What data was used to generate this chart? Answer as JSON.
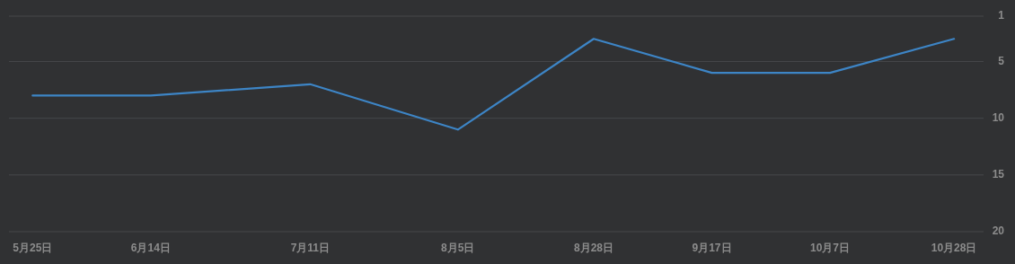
{
  "chart_data": {
    "type": "line",
    "x": [
      "--05-25",
      "--06-14",
      "--07-11",
      "--08-05",
      "--08-28",
      "--09-17",
      "--10-07",
      "--10-28"
    ],
    "values": [
      8,
      8,
      7,
      11,
      3,
      6,
      6,
      3
    ],
    "color": "#3d85c6",
    "xlim": [
      "--05-21",
      "--11-02"
    ],
    "xticks": [
      {
        "value": "--05-25",
        "label": "5月25日"
      },
      {
        "value": "--06-14",
        "label": "6月14日"
      },
      {
        "value": "--07-11",
        "label": "7月11日"
      },
      {
        "value": "--08-05",
        "label": "8月5日"
      },
      {
        "value": "--08-28",
        "label": "8月28日"
      },
      {
        "value": "--09-17",
        "label": "9月17日"
      },
      {
        "value": "--10-07",
        "label": "10月7日"
      },
      {
        "value": "--10-28",
        "label": "10月28日"
      }
    ],
    "ylim": [
      20,
      1
    ],
    "yticks": [
      1,
      5,
      10,
      15,
      20
    ],
    "grid": "y"
  }
}
